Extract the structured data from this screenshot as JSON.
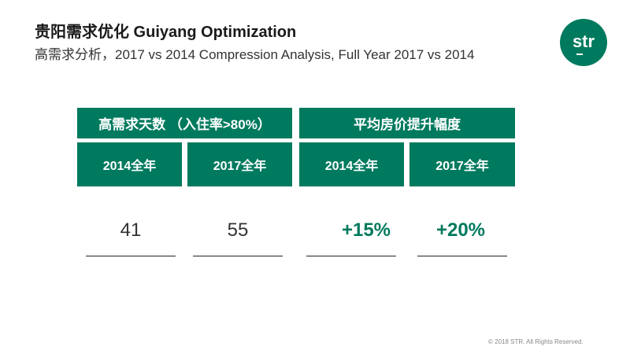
{
  "header": {
    "title": "贵阳需求优化 Guiyang Optimization",
    "subtitle": "高需求分析，2017 vs 2014 Compression Analysis, Full Year 2017 vs 2014"
  },
  "logo": {
    "text": "str"
  },
  "table": {
    "groups": [
      {
        "label": "高需求天数 （入住率>80%）"
      },
      {
        "label": "平均房价提升幅度"
      }
    ],
    "columns": [
      {
        "label": "2014全年",
        "value": "41"
      },
      {
        "label": "2017全年",
        "value": "55"
      },
      {
        "label": "2014全年",
        "value": "+15%"
      },
      {
        "label": "2017全年",
        "value": "+20%"
      }
    ]
  },
  "footer": {
    "copyright": "© 2018 STR. All Rights Reserved."
  },
  "colors": {
    "accent": "#007a5e"
  }
}
